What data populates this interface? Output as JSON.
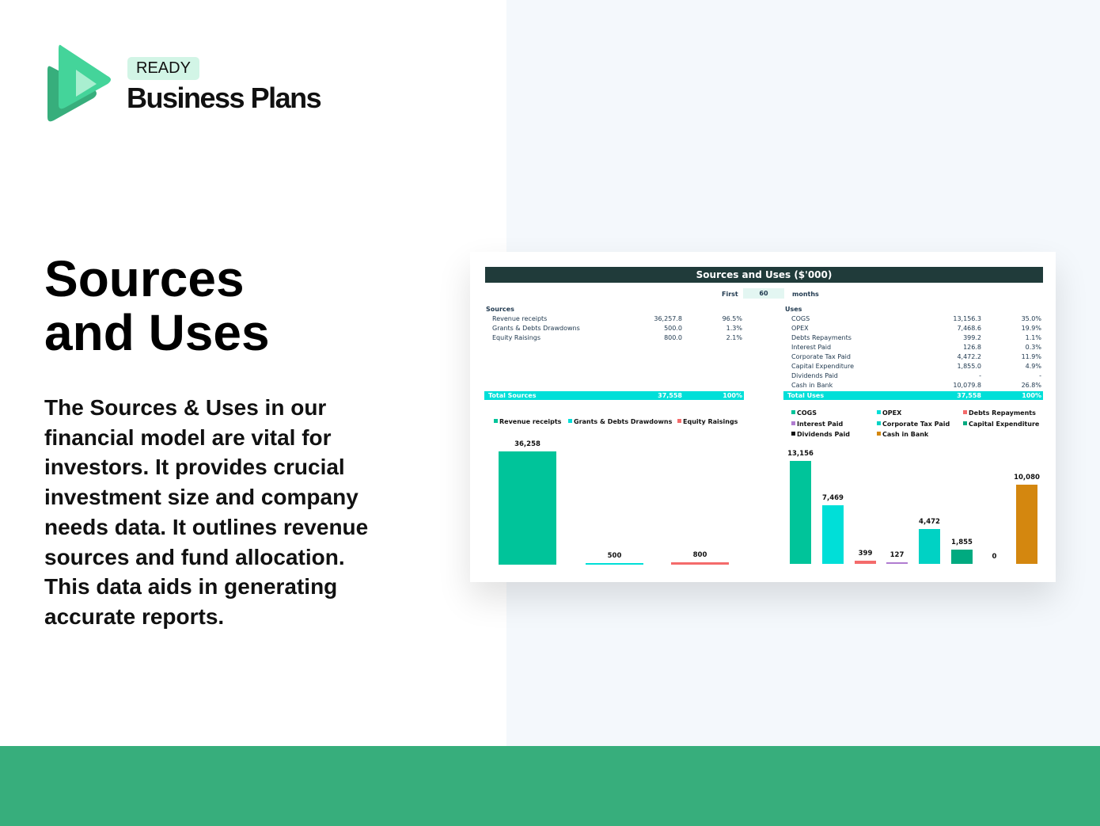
{
  "brand": {
    "badge": "READY",
    "name": "Business Plans",
    "colors": {
      "primary": "#37ae7c",
      "light": "#44d49a"
    }
  },
  "headline": {
    "line1": "Sources",
    "line2": "and Uses"
  },
  "description": "The Sources & Uses in our financial model are vital for investors. It provides crucial investment size and company needs data. It outlines revenue sources and fund allocation. This data aids in generating accurate reports.",
  "sheet": {
    "title": "Sources and Uses ($'000)",
    "period": {
      "prefix": "First",
      "value": "60",
      "suffix": "months"
    },
    "sources": {
      "heading": "Sources",
      "rows": [
        {
          "label": "Revenue receipts",
          "value": "36,257.8",
          "pct": "96.5%"
        },
        {
          "label": "Grants & Debts Drawdowns",
          "value": "500.0",
          "pct": "1.3%"
        },
        {
          "label": "Equity Raisings",
          "value": "800.0",
          "pct": "2.1%"
        }
      ],
      "total": {
        "label": "Total Sources",
        "value": "37,558",
        "pct": "100%"
      }
    },
    "uses": {
      "heading": "Uses",
      "rows": [
        {
          "label": "COGS",
          "value": "13,156.3",
          "pct": "35.0%"
        },
        {
          "label": "OPEX",
          "value": "7,468.6",
          "pct": "19.9%"
        },
        {
          "label": "Debts Repayments",
          "value": "399.2",
          "pct": "1.1%"
        },
        {
          "label": "Interest Paid",
          "value": "126.8",
          "pct": "0.3%"
        },
        {
          "label": "Corporate Tax Paid",
          "value": "4,472.2",
          "pct": "11.9%"
        },
        {
          "label": "Capital Expenditure",
          "value": "1,855.0",
          "pct": "4.9%"
        },
        {
          "label": "Dividends Paid",
          "value": "-",
          "pct": "-"
        },
        {
          "label": "Cash in Bank",
          "value": "10,079.8",
          "pct": "26.8%"
        }
      ],
      "total": {
        "label": "Total Uses",
        "value": "37,558",
        "pct": "100%"
      }
    }
  },
  "chart_data": [
    {
      "type": "bar",
      "categories": [
        "Revenue receipts",
        "Grants & Debts Drawdowns",
        "Equity Raisings"
      ],
      "values": [
        36258,
        500,
        800
      ],
      "data_labels": [
        "36,258",
        "500",
        "800"
      ],
      "colors": [
        "#00c49a",
        "#00dfd8",
        "#f46b6b"
      ],
      "legend": "top"
    },
    {
      "type": "bar",
      "categories": [
        "COGS",
        "OPEX",
        "Debts Repayments",
        "Interest Paid",
        "Corporate Tax Paid",
        "Capital Expenditure",
        "Dividends Paid",
        "Cash in Bank"
      ],
      "values": [
        13156,
        7469,
        399,
        127,
        4472,
        1855,
        0,
        10080
      ],
      "data_labels": [
        "13,156",
        "7,469",
        "399",
        "127",
        "4,472",
        "1,855",
        "0",
        "10,080"
      ],
      "colors": [
        "#00c49a",
        "#00dfd8",
        "#f46b6b",
        "#b07cd0",
        "#00d2c4",
        "#00aa80",
        "#111111",
        "#d4870f"
      ],
      "legend": "top"
    }
  ]
}
